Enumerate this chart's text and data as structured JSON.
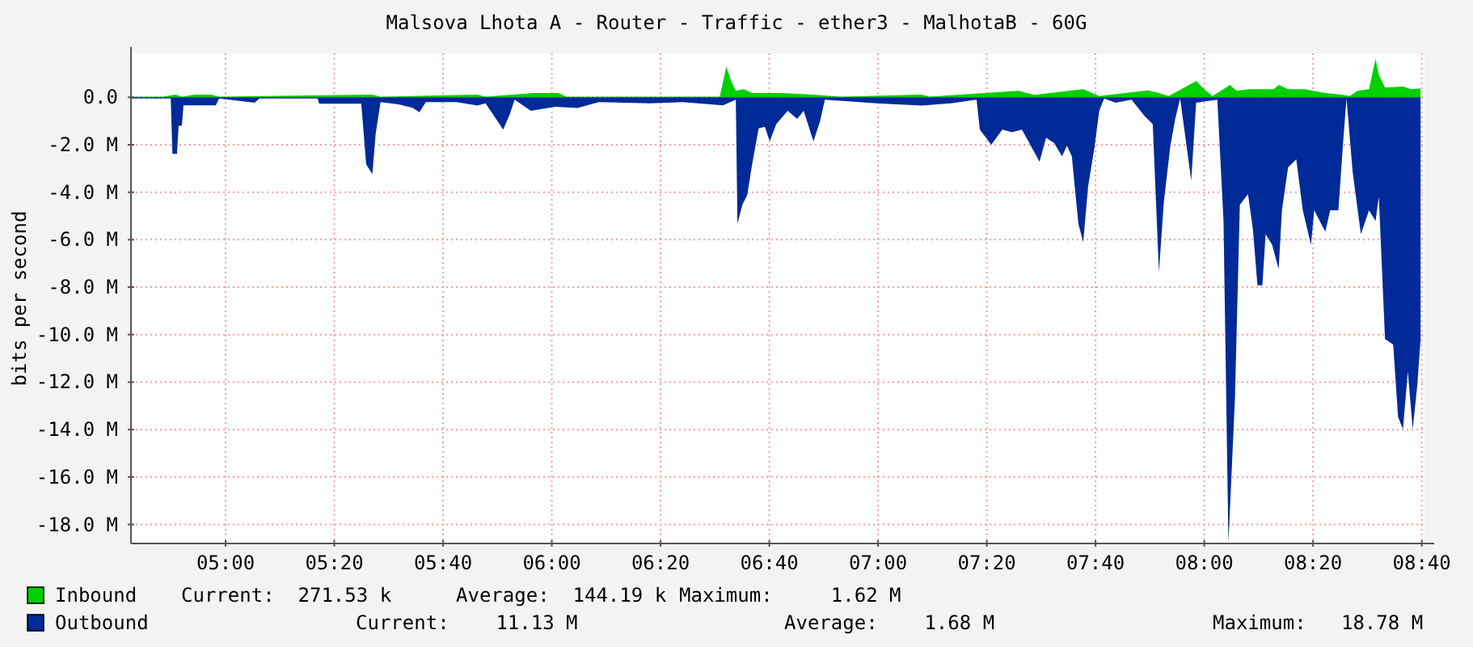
{
  "chart_data": {
    "type": "area",
    "title": "Malsova Lhota A - Router - Traffic - ether3 - MalhotaB - 60G",
    "ylabel": "bits per second",
    "xlim": [
      4.71,
      8.675
    ],
    "ylim": [
      -18.8,
      1.85
    ],
    "xticks": [
      {
        "value": 5,
        "label": "05:00"
      },
      {
        "value": 5.3333,
        "label": "05:20"
      },
      {
        "value": 5.6667,
        "label": "05:40"
      },
      {
        "value": 6,
        "label": "06:00"
      },
      {
        "value": 6.3333,
        "label": "06:20"
      },
      {
        "value": 6.6667,
        "label": "06:40"
      },
      {
        "value": 7,
        "label": "07:00"
      },
      {
        "value": 7.3333,
        "label": "07:20"
      },
      {
        "value": 7.6667,
        "label": "07:40"
      },
      {
        "value": 8,
        "label": "08:00"
      },
      {
        "value": 8.3333,
        "label": "08:20"
      },
      {
        "value": 8.6667,
        "label": "08:40"
      }
    ],
    "yticks": [
      {
        "value": 0,
        "label": "0.0"
      },
      {
        "value": -2,
        "label": "-2.0 M"
      },
      {
        "value": -4,
        "label": "-4.0 M"
      },
      {
        "value": -6,
        "label": "-6.0 M"
      },
      {
        "value": -8,
        "label": "-8.0 M"
      },
      {
        "value": -10,
        "label": "-10.0 M"
      },
      {
        "value": -12,
        "label": "-12.0 M"
      },
      {
        "value": -14,
        "label": "-14.0 M"
      },
      {
        "value": -16,
        "label": "-16.0 M"
      },
      {
        "value": -18,
        "label": "-18.0 M"
      }
    ],
    "grid": true,
    "legend": "bottom left",
    "series": [
      {
        "name": "Inbound",
        "color": "#00cf00",
        "x": [
          4.713,
          4.807,
          4.847,
          4.866,
          4.906,
          4.955,
          4.98,
          5.45,
          5.475,
          5.772,
          5.797,
          5.946,
          6.02,
          6.045,
          6.515,
          6.535,
          6.55,
          6.564,
          6.589,
          6.614,
          6.653,
          6.703,
          6.802,
          6.886,
          7.134,
          7.158,
          7.431,
          7.48,
          7.629,
          7.678,
          7.827,
          7.861,
          7.891,
          7.975,
          8.0,
          8.025,
          8.059,
          8.079,
          8.099,
          8.139,
          8.213,
          8.228,
          8.257,
          8.307,
          8.371,
          8.421,
          8.446,
          8.47,
          8.505,
          8.525,
          8.535,
          8.554,
          8.609,
          8.634,
          8.663
        ],
        "values": [
          0.03,
          0.03,
          0.11,
          0.03,
          0.11,
          0.11,
          0.03,
          0.11,
          0.03,
          0.11,
          0.03,
          0.18,
          0.18,
          0.03,
          0.03,
          1.29,
          0.68,
          0.27,
          0.34,
          0.18,
          0.18,
          0.18,
          0.11,
          0.03,
          0.11,
          0.03,
          0.27,
          0.1,
          0.34,
          0.05,
          0.29,
          0.18,
          0.05,
          0.68,
          0.34,
          0.05,
          0.34,
          0.52,
          0.27,
          0.34,
          0.34,
          0.52,
          0.34,
          0.34,
          0.18,
          0.11,
          0.05,
          0.27,
          0.34,
          1.62,
          0.95,
          0.41,
          0.45,
          0.34,
          0.38
        ]
      },
      {
        "name": "Outbound",
        "color": "#002a97",
        "x": [
          4.713,
          4.832,
          4.837,
          4.851,
          4.856,
          4.866,
          4.871,
          4.97,
          4.98,
          5.089,
          5.104,
          5.282,
          5.287,
          5.416,
          5.431,
          5.45,
          5.46,
          5.475,
          5.53,
          5.574,
          5.594,
          5.614,
          5.708,
          5.772,
          5.797,
          5.851,
          5.871,
          5.886,
          5.936,
          6.01,
          6.079,
          6.144,
          6.302,
          6.401,
          6.525,
          6.564,
          6.569,
          6.584,
          6.599,
          6.614,
          6.634,
          6.653,
          6.668,
          6.688,
          6.723,
          6.752,
          6.772,
          6.802,
          6.822,
          6.837,
          6.995,
          7.134,
          7.223,
          7.302,
          7.312,
          7.347,
          7.381,
          7.411,
          7.441,
          7.495,
          7.515,
          7.54,
          7.564,
          7.579,
          7.594,
          7.614,
          7.629,
          7.644,
          7.663,
          7.678,
          7.693,
          7.728,
          7.777,
          7.817,
          7.842,
          7.861,
          7.876,
          7.896,
          7.911,
          7.926,
          7.96,
          7.975,
          8.04,
          8.059,
          8.074,
          8.094,
          8.109,
          8.134,
          8.149,
          8.163,
          8.178,
          8.188,
          8.208,
          8.228,
          8.238,
          8.257,
          8.282,
          8.302,
          8.327,
          8.337,
          8.371,
          8.386,
          8.411,
          8.426,
          8.436,
          8.455,
          8.48,
          8.505,
          8.525,
          8.535,
          8.554,
          8.579,
          8.594,
          8.609,
          8.624,
          8.639,
          8.653,
          8.663
        ],
        "values": [
          -0.05,
          -0.05,
          -2.38,
          -2.38,
          -1.2,
          -1.2,
          -0.34,
          -0.34,
          -0.05,
          -0.23,
          -0.05,
          -0.05,
          -0.27,
          -0.27,
          -2.83,
          -3.24,
          -1.54,
          -0.2,
          -0.3,
          -0.45,
          -0.63,
          -0.2,
          -0.2,
          -0.35,
          -0.25,
          -1.36,
          -0.72,
          -0.1,
          -0.57,
          -0.4,
          -0.45,
          -0.2,
          -0.25,
          -0.2,
          -0.34,
          -0.1,
          -5.32,
          -4.53,
          -4.12,
          -2.83,
          -1.31,
          -1.24,
          -1.86,
          -1.13,
          -0.57,
          -0.91,
          -0.57,
          -1.86,
          -1.02,
          -0.1,
          -0.25,
          -0.35,
          -0.25,
          -0.1,
          -1.36,
          -2.0,
          -1.36,
          -1.47,
          -1.36,
          -2.72,
          -1.7,
          -1.93,
          -2.49,
          -2.04,
          -2.49,
          -5.32,
          -6.11,
          -3.74,
          -2.15,
          -0.57,
          -0.05,
          -0.23,
          -0.1,
          -0.79,
          -1.13,
          -7.36,
          -4.42,
          -2.04,
          -0.91,
          -0.05,
          -3.51,
          -0.23,
          -0.1,
          -5.21,
          -18.78,
          -12.68,
          -4.53,
          -4.08,
          -5.55,
          -7.92,
          -7.92,
          -5.77,
          -6.22,
          -7.24,
          -4.76,
          -2.95,
          -2.61,
          -4.76,
          -6.22,
          -4.76,
          -5.66,
          -4.76,
          -4.76,
          -1.81,
          -0.05,
          -3.17,
          -5.77,
          -4.76,
          -5.21,
          -4.19,
          -10.19,
          -10.42,
          -13.47,
          -13.99,
          -11.55,
          -13.99,
          -12.11,
          -10.19
        ]
      }
    ],
    "annotations": [
      "Current:  271.53 k",
      "Average:  144.19 k",
      "Maximum:     1.62 M",
      "Current:    11.13 M",
      "Average:    1.68 M",
      "Maximum:   18.78 M"
    ]
  }
}
